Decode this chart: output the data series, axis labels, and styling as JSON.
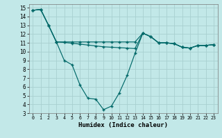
{
  "xlabel": "Humidex (Indice chaleur)",
  "bg_color": "#c2e8e8",
  "grid_color": "#a8d0d0",
  "line_color": "#006868",
  "xlim_min": -0.5,
  "xlim_max": 23.5,
  "ylim_min": 3,
  "ylim_max": 15.4,
  "xticks": [
    0,
    1,
    2,
    3,
    4,
    5,
    6,
    7,
    8,
    9,
    10,
    11,
    12,
    13,
    14,
    15,
    16,
    17,
    18,
    19,
    20,
    21,
    22,
    23
  ],
  "yticks": [
    3,
    4,
    5,
    6,
    7,
    8,
    9,
    10,
    11,
    12,
    13,
    14,
    15
  ],
  "line1_y": [
    14.7,
    14.8,
    13.0,
    11.1,
    9.0,
    8.5,
    6.2,
    4.7,
    4.6,
    3.4,
    3.8,
    5.3,
    7.3,
    9.8,
    12.1,
    11.7,
    11.0,
    11.0,
    10.9,
    10.5,
    10.4,
    10.7,
    10.7,
    10.8
  ],
  "line2_y": [
    14.7,
    14.8,
    13.0,
    11.1,
    11.05,
    10.95,
    10.85,
    10.75,
    10.65,
    10.55,
    10.5,
    10.45,
    10.4,
    10.35,
    12.1,
    11.7,
    11.0,
    11.0,
    10.9,
    10.5,
    10.4,
    10.7,
    10.7,
    10.8
  ],
  "line3_y": [
    14.7,
    14.8,
    13.0,
    11.1,
    11.1,
    11.1,
    11.1,
    11.1,
    11.1,
    11.1,
    11.1,
    11.1,
    11.1,
    11.1,
    12.1,
    11.7,
    11.0,
    11.0,
    10.9,
    10.5,
    10.4,
    10.7,
    10.7,
    10.8
  ]
}
